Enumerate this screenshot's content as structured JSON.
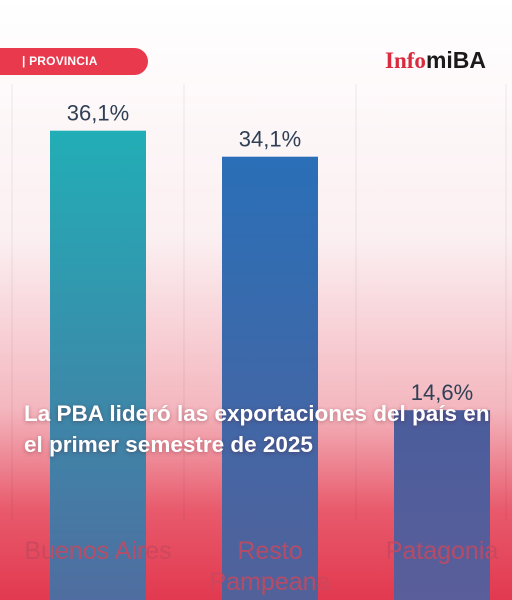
{
  "header": {
    "section_label": "| PROVINCIA",
    "logo": {
      "part1": "Info",
      "part2": "miBA"
    }
  },
  "headline": "La PBA lideró las exportaciones del país en el primer semestre de 2025",
  "chart_data": {
    "type": "bar",
    "unit": "%",
    "categories": [
      "Buenos Aires",
      "Resto Pampeana",
      "Patagonia"
    ],
    "values": [
      36.1,
      34.1,
      14.6
    ],
    "value_labels": [
      "36,1%",
      "34,1%",
      "14,6%"
    ],
    "ylim": [
      0,
      40
    ],
    "grid": false,
    "bar_colors": [
      [
        "#22aeb6",
        "#4f6da0"
      ],
      [
        "#2a6fb7",
        "#52619a"
      ],
      [
        "#4a5d9c",
        "#5a5e9a"
      ]
    ]
  },
  "colors": {
    "accent": "#e8394d",
    "label_text": "#2f3f55",
    "axis_text": "#c8485e"
  }
}
